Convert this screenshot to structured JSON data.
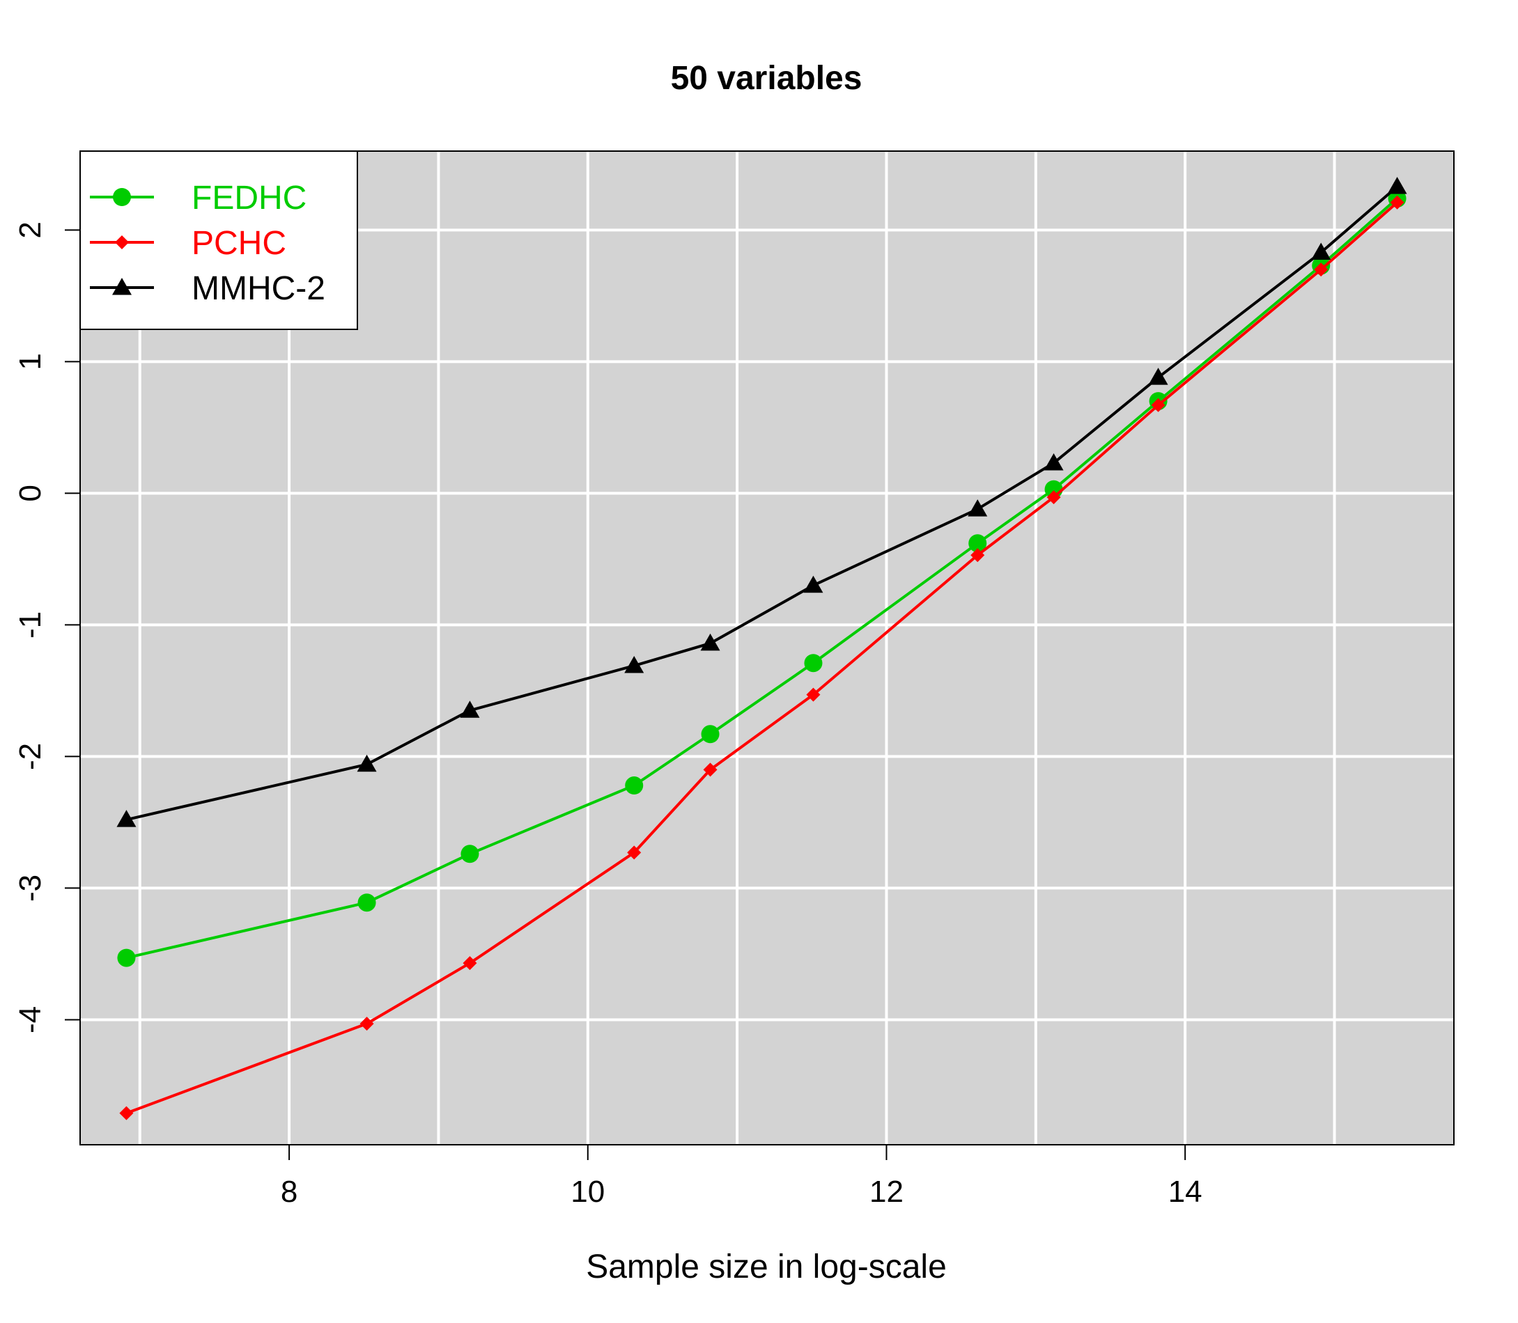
{
  "chart_data": {
    "type": "line",
    "title": "50 variables",
    "xlabel": "Sample size in log-scale",
    "ylabel": "",
    "xlim": [
      6.6,
      15.8
    ],
    "ylim": [
      -4.95,
      2.6
    ],
    "x_ticks": [
      8,
      10,
      12,
      14
    ],
    "x_tick_labels": [
      "8",
      "10",
      "12",
      "14"
    ],
    "y_ticks": [
      -4,
      -3,
      -2,
      -1,
      0,
      1,
      2
    ],
    "y_tick_labels": [
      "-4",
      "-3",
      "-2",
      "-1",
      "0",
      "1",
      "2"
    ],
    "grid": true,
    "background": "#d3d3d3",
    "grid_color": "#ffffff",
    "legend_position": "top-left",
    "x": [
      6.91,
      8.52,
      9.21,
      10.31,
      10.82,
      11.51,
      12.61,
      13.12,
      13.82,
      14.91,
      15.42
    ],
    "series": [
      {
        "name": "FEDHC",
        "color": "#00cc00",
        "marker": "circle",
        "values": [
          -3.53,
          -3.11,
          -2.74,
          -2.22,
          -1.83,
          -1.29,
          -0.38,
          0.03,
          0.7,
          1.73,
          2.24
        ]
      },
      {
        "name": "PCHC",
        "color": "#ff0000",
        "marker": "diamond",
        "values": [
          -4.71,
          -4.03,
          -3.57,
          -2.73,
          -2.1,
          -1.53,
          -0.47,
          -0.03,
          0.67,
          1.7,
          2.21
        ]
      },
      {
        "name": "MMHC-2",
        "color": "#000000",
        "marker": "triangle",
        "values": [
          -2.48,
          -2.06,
          -1.65,
          -1.31,
          -1.14,
          -0.7,
          -0.12,
          0.23,
          0.88,
          1.83,
          2.33
        ]
      }
    ]
  }
}
